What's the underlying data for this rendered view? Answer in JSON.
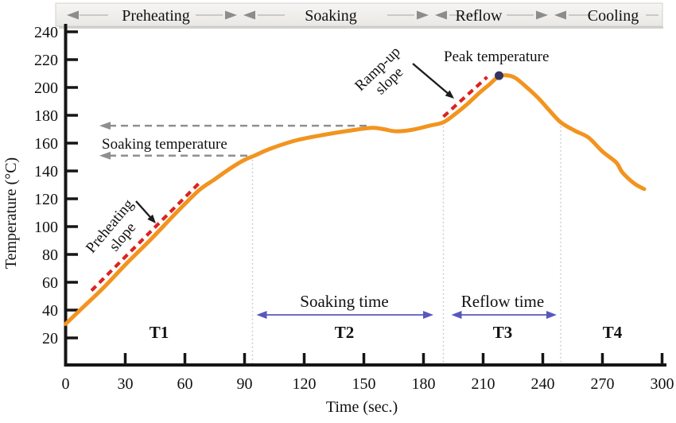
{
  "figure": {
    "phases_band": {
      "labels": [
        "Preheating",
        "Soaking",
        "Reflow",
        "Cooling"
      ]
    },
    "annotations": {
      "soaking_temperature": "Soaking temperature",
      "peak_temperature": "Peak temperature",
      "ramp_up_slope": {
        "lines": [
          "Ramp-up",
          "slope"
        ]
      },
      "preheating_slope": {
        "lines": [
          "Preheating",
          "slope"
        ]
      }
    },
    "colors": {
      "curve": "#f2941f",
      "slope_dash": "#dd2222",
      "peak_dot": "#34345e",
      "span_arrow": "#5956bd",
      "reference_arrow": "#8f8f8f",
      "axis": "#151515",
      "boundary_line": "#c5ced4",
      "band_arrow": "#8c8c8c",
      "band_line": "#c9c9c9",
      "annotation_arrow": "#1c1c1c"
    }
  },
  "chart_data": {
    "type": "line",
    "xlabel": "Time (sec.)",
    "ylabel": "Temperature (°C)",
    "xlim": [
      0,
      300
    ],
    "ylim": [
      20,
      240
    ],
    "x_ticks": [
      0,
      30,
      60,
      90,
      120,
      150,
      180,
      210,
      240,
      270,
      300
    ],
    "y_ticks": [
      20,
      40,
      60,
      80,
      100,
      120,
      140,
      160,
      180,
      200,
      220,
      240
    ],
    "grid": false,
    "legend": "none",
    "series": [
      {
        "name": "temperature-profile",
        "points": [
          [
            0,
            30
          ],
          [
            8,
            41
          ],
          [
            19,
            56
          ],
          [
            31,
            74
          ],
          [
            43,
            91
          ],
          [
            55,
            109
          ],
          [
            67,
            126
          ],
          [
            75,
            134
          ],
          [
            83,
            142
          ],
          [
            90,
            148
          ],
          [
            95,
            151
          ],
          [
            103,
            156
          ],
          [
            116,
            162
          ],
          [
            130,
            166
          ],
          [
            143,
            169
          ],
          [
            154,
            171
          ],
          [
            160,
            170
          ],
          [
            166,
            168.5
          ],
          [
            174,
            169.5
          ],
          [
            183,
            172.5
          ],
          [
            190,
            175
          ],
          [
            196,
            181
          ],
          [
            202,
            188
          ],
          [
            208,
            196
          ],
          [
            213,
            202
          ],
          [
            217,
            207
          ],
          [
            221,
            208.8
          ],
          [
            226,
            207
          ],
          [
            232,
            200
          ],
          [
            238,
            192
          ],
          [
            243,
            184
          ],
          [
            249,
            175
          ],
          [
            256,
            169
          ],
          [
            263,
            164
          ],
          [
            270,
            154
          ],
          [
            277,
            146
          ],
          [
            280,
            139
          ],
          [
            286,
            131
          ],
          [
            291,
            127
          ]
        ]
      }
    ],
    "slope_guides": [
      {
        "name": "preheating-slope",
        "points": [
          [
            13,
            54
          ],
          [
            67,
            131
          ]
        ]
      },
      {
        "name": "ramp-up-slope",
        "points": [
          [
            190,
            179
          ],
          [
            212,
            207.5
          ]
        ]
      }
    ],
    "peak_point": {
      "t": 218,
      "temp": 208.5
    },
    "soaking_temperature_arrows": [
      {
        "temp": 172.5,
        "t_start": 17,
        "t_end": 153
      },
      {
        "temp": 151,
        "t_start": 17,
        "t_end": 92
      }
    ],
    "phase_boundaries": [
      {
        "t": 94,
        "top_temp": 151
      },
      {
        "t": 190,
        "top_temp": 175
      },
      {
        "t": 249,
        "top_temp": 175
      }
    ],
    "time_spans": [
      {
        "label": "Soaking time",
        "t_start": 96,
        "t_end": 185
      },
      {
        "label": "Reflow time",
        "t_start": 194,
        "t_end": 247
      }
    ],
    "phase_time_labels": [
      {
        "label": "T1",
        "t": 47
      },
      {
        "label": "T2",
        "t": 140
      },
      {
        "label": "T3",
        "t": 220
      },
      {
        "label": "T4",
        "t": 275
      }
    ]
  }
}
